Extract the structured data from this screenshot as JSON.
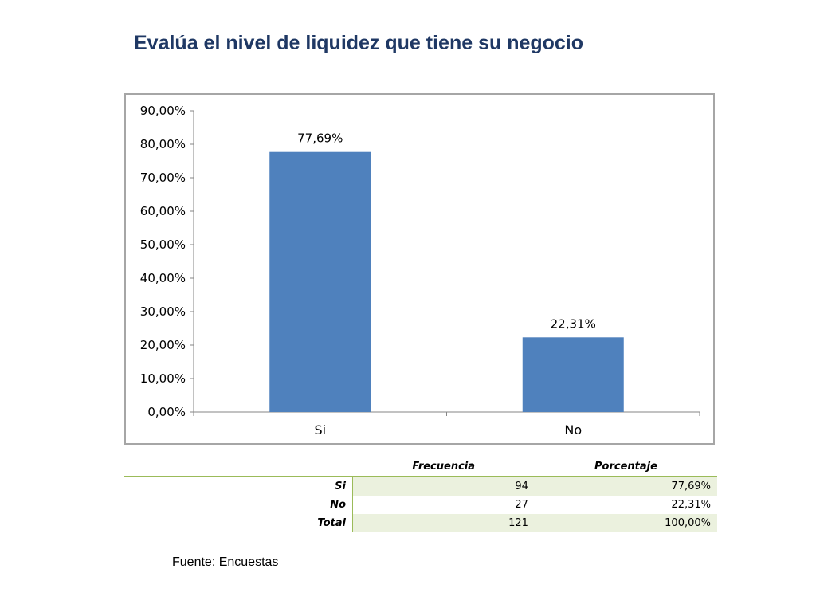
{
  "title": "Evalúa el nivel de liquidez que tiene su negocio",
  "chart_data": {
    "type": "bar",
    "categories": [
      "Si",
      "No"
    ],
    "values": [
      77.69,
      22.31
    ],
    "data_labels": [
      "77,69%",
      "22,31%"
    ],
    "ylim": [
      0,
      90
    ],
    "yticks": [
      "0,00%",
      "10,00%",
      "20,00%",
      "30,00%",
      "40,00%",
      "50,00%",
      "60,00%",
      "70,00%",
      "80,00%",
      "90,00%"
    ],
    "grid": false,
    "legend": "none",
    "bar_color": "#4f81bd"
  },
  "table": {
    "headers": [
      "Frecuencia",
      "Porcentaje"
    ],
    "rows": [
      {
        "label": "Si",
        "frecuencia": "94",
        "porcentaje": "77,69%"
      },
      {
        "label": "No",
        "frecuencia": "27",
        "porcentaje": "22,31%"
      },
      {
        "label": "Total",
        "frecuencia": "121",
        "porcentaje": "100,00%"
      }
    ]
  },
  "source": "Fuente: Encuestas"
}
